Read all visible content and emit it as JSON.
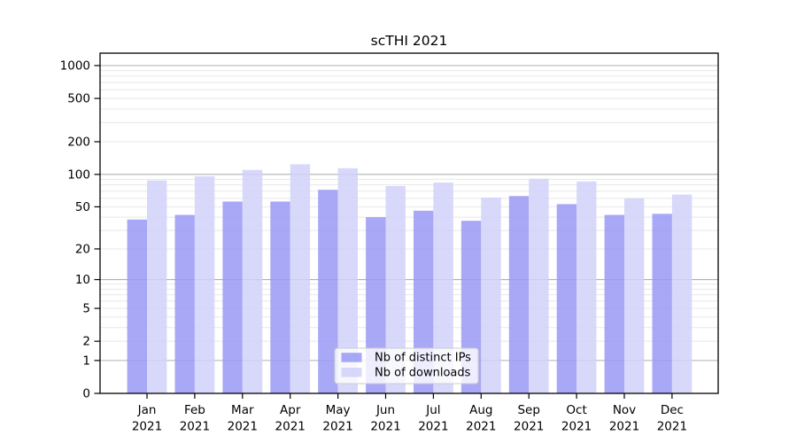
{
  "chart_data": {
    "type": "bar",
    "title": "scTHI 2021",
    "categories": [
      "Jan",
      "Feb",
      "Mar",
      "Apr",
      "May",
      "Jun",
      "Jul",
      "Aug",
      "Sep",
      "Oct",
      "Nov",
      "Dec"
    ],
    "x_year": "2021",
    "series": [
      {
        "name": "Nb of distinct IPs",
        "color": "#9999f6",
        "values": [
          38,
          42,
          56,
          56,
          72,
          40,
          46,
          37,
          63,
          53,
          42,
          43
        ]
      },
      {
        "name": "Nb of downloads",
        "color": "#d1d1f9",
        "values": [
          88,
          96,
          110,
          124,
          114,
          78,
          84,
          61,
          91,
          86,
          60,
          65
        ]
      }
    ],
    "yscale": "log1p",
    "yticks": [
      0,
      1,
      2,
      5,
      10,
      20,
      50,
      100,
      200,
      500,
      1000
    ],
    "ylim": [
      0,
      1230
    ],
    "xlabel": "",
    "ylabel": "",
    "grid": "on",
    "legend_position": "lower center",
    "colors": {
      "bar_ips": "#9999f6",
      "bar_downloads": "#d1d1f9",
      "grid_major": "#b0b0b0",
      "grid_minor": "#e8e8e8",
      "axis": "#000000",
      "text": "#000000",
      "legend_border": "#cccccc",
      "legend_bg": "#ffffff",
      "background": "#ffffff"
    }
  }
}
